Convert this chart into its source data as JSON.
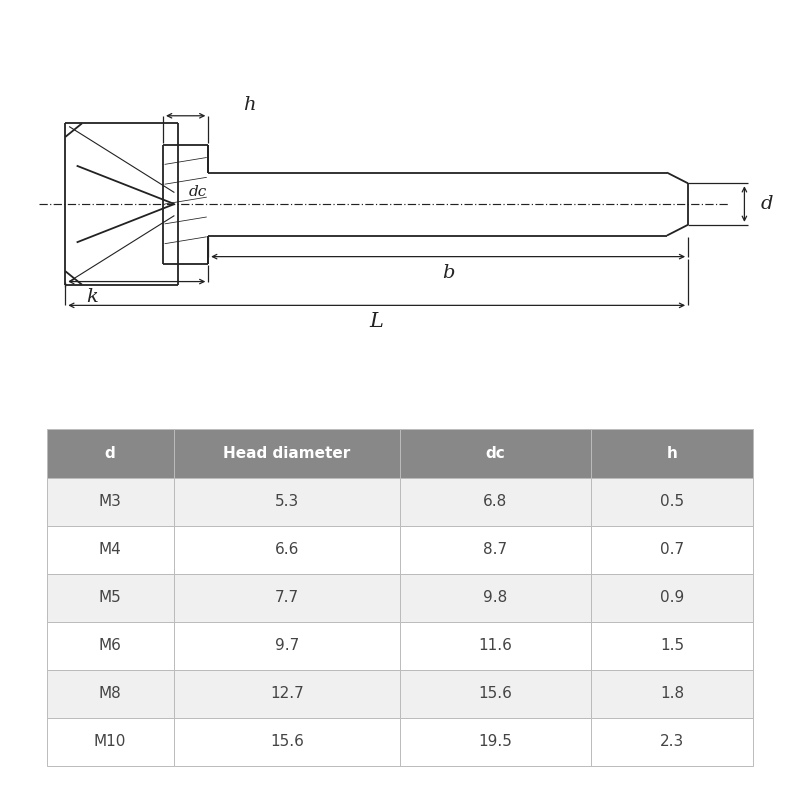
{
  "table_headers": [
    "d",
    "Head diameter",
    "dc",
    "h"
  ],
  "table_rows": [
    [
      "M3",
      "5.3",
      "6.8",
      "0.5"
    ],
    [
      "M4",
      "6.6",
      "8.7",
      "0.7"
    ],
    [
      "M5",
      "7.7",
      "9.8",
      "0.9"
    ],
    [
      "M6",
      "9.7",
      "11.6",
      "1.5"
    ],
    [
      "M8",
      "12.7",
      "15.6",
      "1.8"
    ],
    [
      "M10",
      "15.6",
      "19.5",
      "2.3"
    ]
  ],
  "header_bg": "#888888",
  "row_bg_odd": "#f0f0f0",
  "row_bg_even": "#ffffff",
  "header_text_color": "#ffffff",
  "cell_text_color": "#444444",
  "border_color": "#bbbbbb",
  "bg_color": "#ffffff",
  "diagram_line_color": "#222222",
  "header_fontsize": 11,
  "cell_fontsize": 11
}
